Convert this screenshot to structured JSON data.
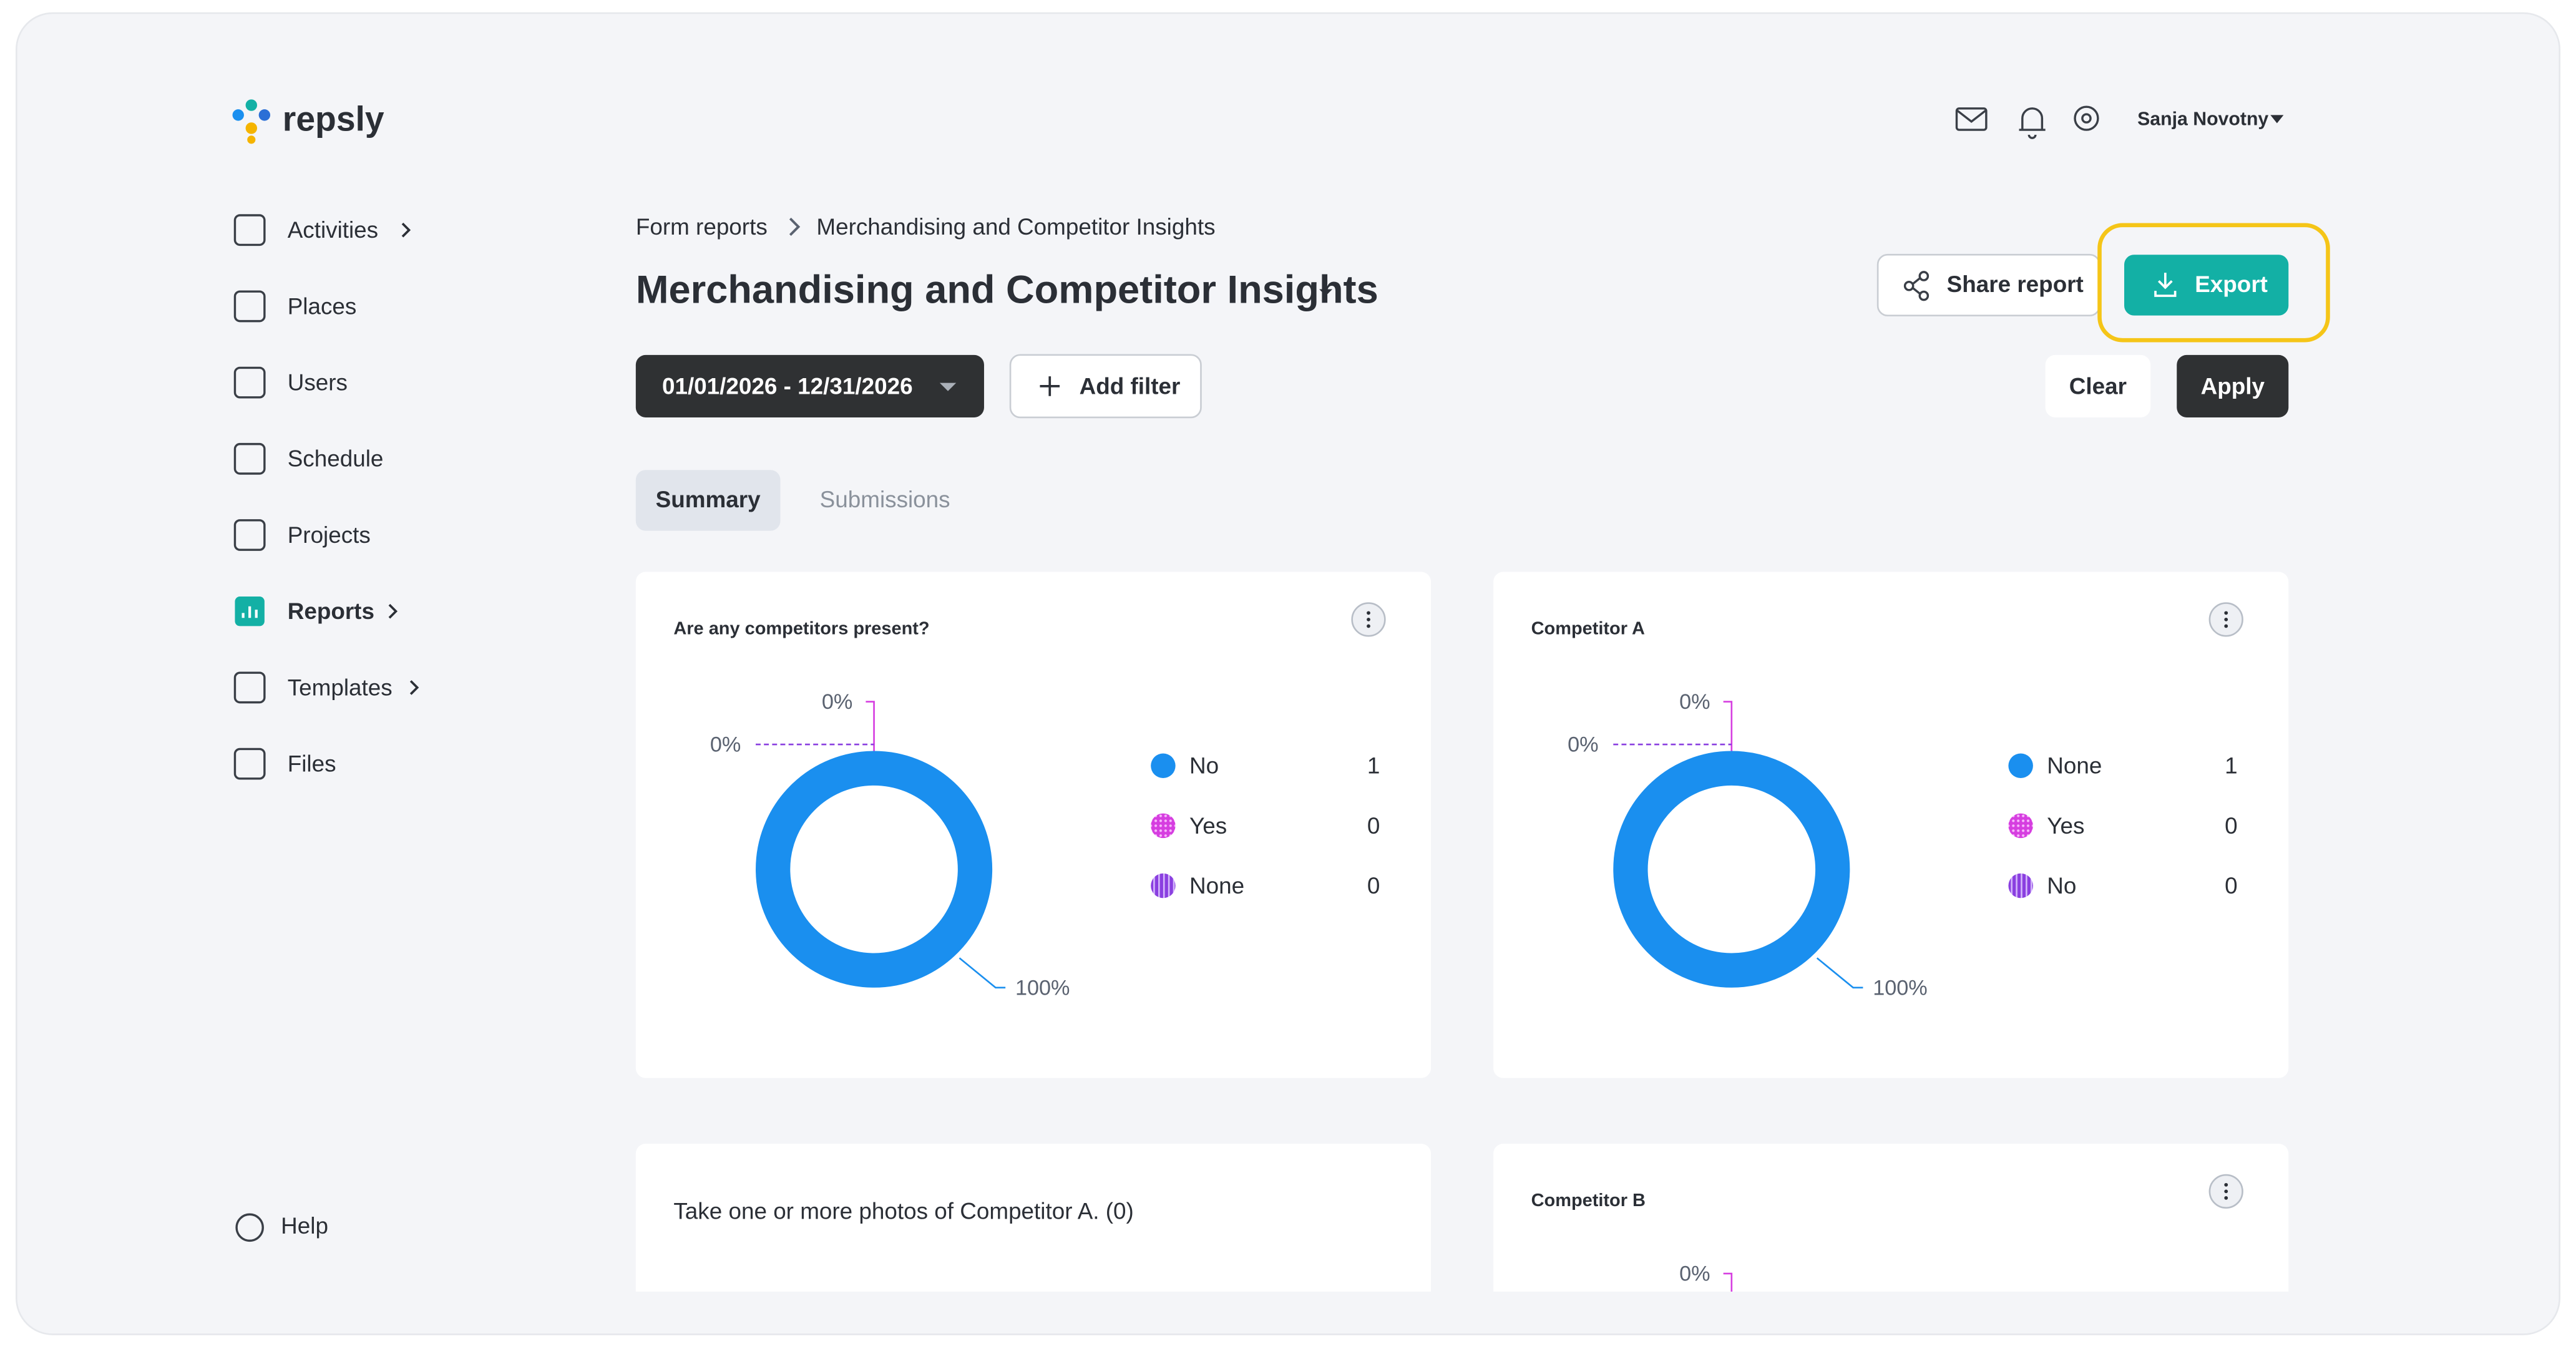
{
  "logo": "repsly",
  "header": {
    "user": "Sanja Novotny"
  },
  "sidebar": {
    "items": [
      "Activities",
      "Places",
      "Users",
      "Schedule",
      "Projects",
      "Reports",
      "Templates",
      "Files"
    ],
    "help": "Help"
  },
  "breadcrumb": [
    "Form reports",
    "Merchandising and Competitor Insights"
  ],
  "title": "Merchandising and Competitor Insights",
  "actions": {
    "share": "Share report",
    "export": "Export"
  },
  "filters": {
    "date_range": "01/01/2026 - 12/31/2026",
    "add_filter": "Add filter",
    "clear": "Clear",
    "apply": "Apply"
  },
  "tabs": [
    "Summary",
    "Submissions"
  ],
  "cards": [
    {
      "title": "Are any competitors present?",
      "labels": [
        "0%",
        "0%",
        "100%"
      ],
      "legend": [
        {
          "label": "No",
          "count": 1
        },
        {
          "label": "Yes",
          "count": 0
        },
        {
          "label": "None",
          "count": 0
        }
      ]
    },
    {
      "title": "Competitor A",
      "labels": [
        "0%",
        "0%",
        "100%"
      ],
      "legend": [
        {
          "label": "None",
          "count": 1
        },
        {
          "label": "Yes",
          "count": 0
        },
        {
          "label": "No",
          "count": 0
        }
      ]
    },
    {
      "title": "Take one or more photos of Competitor A. (0)"
    },
    {
      "title": "Competitor B",
      "labels": [
        "0%"
      ]
    }
  ]
}
